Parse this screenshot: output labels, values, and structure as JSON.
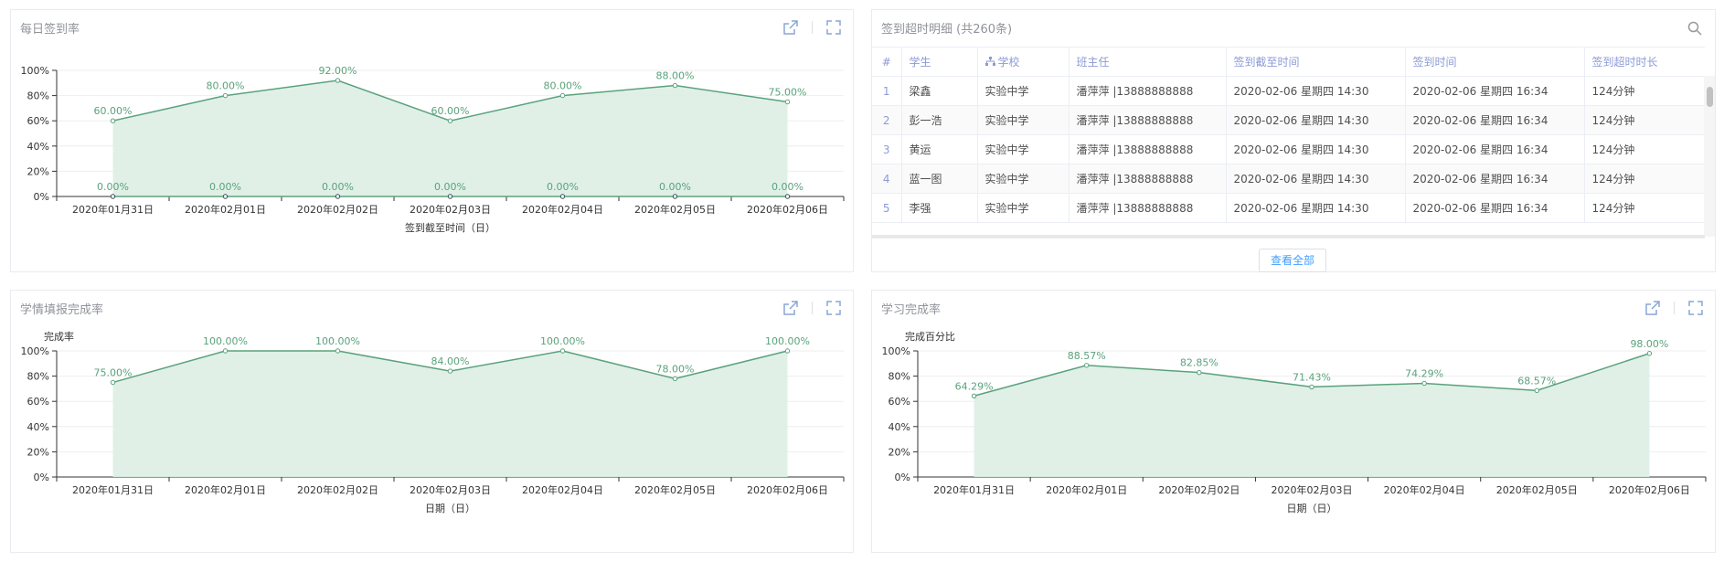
{
  "colors": {
    "line": "#5aa27c",
    "area": "#ddeee4",
    "axis": "#333333",
    "grid": "#eeeeee",
    "accent": "#409eff",
    "header": "#8c9bd6"
  },
  "icons": {
    "open": "external-link-icon",
    "expand": "fullscreen-icon",
    "search": "search-icon",
    "school": "org-tree-icon"
  },
  "panels": {
    "signin": {
      "title": "每日签到率"
    },
    "study_report": {
      "title": "学情填报完成率"
    },
    "learning": {
      "title": "学习完成率"
    }
  },
  "table": {
    "title": "签到超时明细 (共260条)",
    "columns": [
      "#",
      "学生",
      "学校",
      "班主任",
      "签到截至时间",
      "签到时间",
      "签到超时时长"
    ],
    "rows": [
      [
        "1",
        "梁鑫",
        "实验中学",
        "潘萍萍 |13888888888",
        "2020-02-06 星期四 14:30",
        "2020-02-06 星期四 16:34",
        "124分钟"
      ],
      [
        "2",
        "彭一浩",
        "实验中学",
        "潘萍萍 |13888888888",
        "2020-02-06 星期四 14:30",
        "2020-02-06 星期四 16:34",
        "124分钟"
      ],
      [
        "3",
        "黄运",
        "实验中学",
        "潘萍萍 |13888888888",
        "2020-02-06 星期四 14:30",
        "2020-02-06 星期四 16:34",
        "124分钟"
      ],
      [
        "4",
        "蓝一图",
        "实验中学",
        "潘萍萍 |13888888888",
        "2020-02-06 星期四 14:30",
        "2020-02-06 星期四 16:34",
        "124分钟"
      ],
      [
        "5",
        "李强",
        "实验中学",
        "潘萍萍 |13888888888",
        "2020-02-06 星期四 14:30",
        "2020-02-06 星期四 16:34",
        "124分钟"
      ]
    ],
    "view_all": "查看全部"
  },
  "chart_data": [
    {
      "type": "area",
      "categories": [
        "2020年01月31日",
        "2020年02月01日",
        "2020年02月02日",
        "2020年02月03日",
        "2020年02月04日",
        "2020年02月05日",
        "2020年02月06日"
      ],
      "series": [
        {
          "values": [
            60,
            80,
            92,
            60,
            80,
            88,
            75
          ],
          "labels": [
            "60.00%",
            "80.00%",
            "92.00%",
            "60.00%",
            "80.00%",
            "88.00%",
            "75.00%"
          ]
        },
        {
          "values": [
            0,
            0,
            0,
            0,
            0,
            0,
            0
          ],
          "labels": [
            "0.00%",
            "0.00%",
            "0.00%",
            "0.00%",
            "0.00%",
            "0.00%",
            "0.00%"
          ]
        }
      ],
      "ylim": [
        0,
        100
      ],
      "yticks": [
        "0%",
        "20%",
        "40%",
        "60%",
        "80%",
        "100%"
      ],
      "xlabel": "签到截至时间（日）",
      "ylabel": ""
    },
    {
      "type": "area",
      "categories": [
        "2020年01月31日",
        "2020年02月01日",
        "2020年02月02日",
        "2020年02月03日",
        "2020年02月04日",
        "2020年02月05日",
        "2020年02月06日"
      ],
      "series": [
        {
          "values": [
            75,
            100,
            100,
            84,
            100,
            78,
            100
          ],
          "labels": [
            "75.00%",
            "100.00%",
            "100.00%",
            "84.00%",
            "100.00%",
            "78.00%",
            "100.00%"
          ]
        }
      ],
      "ylim": [
        0,
        100
      ],
      "yticks": [
        "0%",
        "20%",
        "40%",
        "60%",
        "80%",
        "100%"
      ],
      "xlabel": "日期（日）",
      "ylabel": "完成率"
    },
    {
      "type": "area",
      "categories": [
        "2020年01月31日",
        "2020年02月01日",
        "2020年02月02日",
        "2020年02月03日",
        "2020年02月04日",
        "2020年02月05日",
        "2020年02月06日"
      ],
      "series": [
        {
          "values": [
            64.29,
            88.57,
            82.85,
            71.43,
            74.29,
            68.57,
            98
          ],
          "labels": [
            "64.29%",
            "88.57%",
            "82.85%",
            "71.43%",
            "74.29%",
            "68.57%",
            "98.00%"
          ]
        }
      ],
      "ylim": [
        0,
        100
      ],
      "yticks": [
        "0%",
        "20%",
        "40%",
        "60%",
        "80%",
        "100%"
      ],
      "xlabel": "日期（日）",
      "ylabel": "完成百分比"
    }
  ]
}
